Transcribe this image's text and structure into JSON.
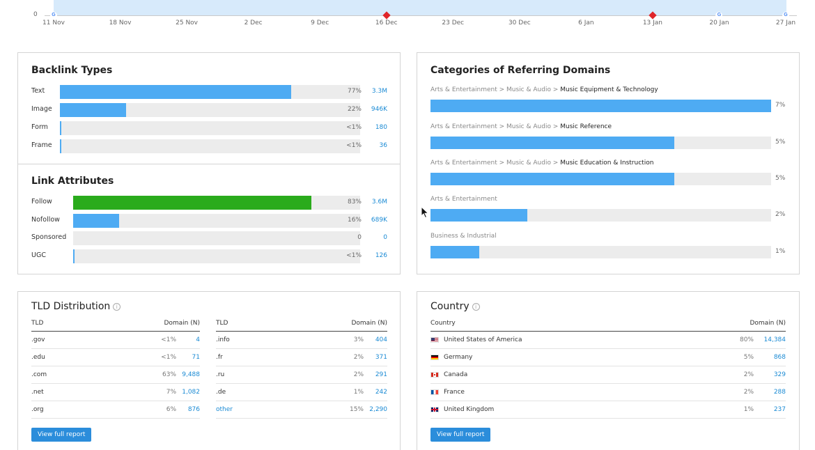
{
  "timeline": {
    "y_zero_label": "0",
    "dates": [
      "11 Nov",
      "18 Nov",
      "25 Nov",
      "2 Dec",
      "9 Dec",
      "16 Dec",
      "23 Dec",
      "30 Dec",
      "6 Jan",
      "13 Jan",
      "20 Jan",
      "27 Jan"
    ],
    "google_marker_icon": "google-g-icon",
    "google_marker_glyph": "G",
    "update_marker_icon": "red-diamond-icon",
    "colors": {
      "area": "#d7eafb",
      "diamond": "#e0262a"
    }
  },
  "backlink_types": {
    "title": "Backlink Types",
    "rows": [
      {
        "label": "Text",
        "share": 0.77,
        "pct": "77%",
        "value": "3.3M"
      },
      {
        "label": "Image",
        "share": 0.22,
        "pct": "22%",
        "value": "946K"
      },
      {
        "label": "Form",
        "share": 0.005,
        "pct": "<1%",
        "value": "180"
      },
      {
        "label": "Frame",
        "share": 0.005,
        "pct": "<1%",
        "value": "36"
      }
    ]
  },
  "link_attributes": {
    "title": "Link Attributes",
    "rows": [
      {
        "label": "Follow",
        "share": 0.83,
        "pct": "83%",
        "value": "3.6M",
        "color": "#2aab1c"
      },
      {
        "label": "Nofollow",
        "share": 0.16,
        "pct": "16%",
        "value": "689K",
        "color": "#4eabf3"
      },
      {
        "label": "Sponsored",
        "share": 0,
        "pct": "0",
        "value": "0",
        "color": "#4eabf3"
      },
      {
        "label": "UGC",
        "share": 0.005,
        "pct": "<1%",
        "value": "126",
        "color": "#4eabf3"
      }
    ]
  },
  "categories": {
    "title": "Categories of Referring Domains",
    "rows": [
      {
        "path": "Arts & Entertainment > Music & Audio > ",
        "leaf": "Music Equipment & Technology",
        "share": 1.0,
        "pct": "7%"
      },
      {
        "path": "Arts & Entertainment > Music & Audio > ",
        "leaf": "Music Reference",
        "share": 0.715,
        "pct": "5%"
      },
      {
        "path": "Arts & Entertainment > Music & Audio > ",
        "leaf": "Music Education & Instruction",
        "share": 0.715,
        "pct": "5%"
      },
      {
        "path": "",
        "leaf": "Arts & Entertainment",
        "share": 0.285,
        "pct": "2%",
        "muted_leaf": true
      },
      {
        "path": "",
        "leaf": "Business & Industrial",
        "share": 0.143,
        "pct": "1%",
        "muted_leaf": true
      }
    ]
  },
  "tld": {
    "title": "TLD Distribution",
    "info_glyph": "i",
    "col_tld": "TLD",
    "col_domain": "Domain (N)",
    "left": [
      {
        "tld": ".gov",
        "pct": "<1%",
        "value": "4"
      },
      {
        "tld": ".edu",
        "pct": "<1%",
        "value": "71"
      },
      {
        "tld": ".com",
        "pct": "63%",
        "value": "9,488"
      },
      {
        "tld": ".net",
        "pct": "7%",
        "value": "1,082"
      },
      {
        "tld": ".org",
        "pct": "6%",
        "value": "876"
      }
    ],
    "right": [
      {
        "tld": ".info",
        "pct": "3%",
        "value": "404"
      },
      {
        "tld": ".fr",
        "pct": "2%",
        "value": "371"
      },
      {
        "tld": ".ru",
        "pct": "2%",
        "value": "291"
      },
      {
        "tld": ".de",
        "pct": "1%",
        "value": "242"
      },
      {
        "tld": "other",
        "pct": "15%",
        "value": "2,290",
        "link": true
      }
    ],
    "button": "View full report"
  },
  "country": {
    "title": "Country",
    "info_glyph": "i",
    "col_country": "Country",
    "col_domain": "Domain (N)",
    "rows": [
      {
        "name": "United States of America",
        "flag": "us",
        "pct": "80%",
        "value": "14,384"
      },
      {
        "name": "Germany",
        "flag": "de",
        "pct": "5%",
        "value": "868"
      },
      {
        "name": "Canada",
        "flag": "ca",
        "pct": "2%",
        "value": "329"
      },
      {
        "name": "France",
        "flag": "fr",
        "pct": "2%",
        "value": "288"
      },
      {
        "name": "United Kingdom",
        "flag": "uk",
        "pct": "1%",
        "value": "237"
      }
    ],
    "button": "View full report"
  }
}
